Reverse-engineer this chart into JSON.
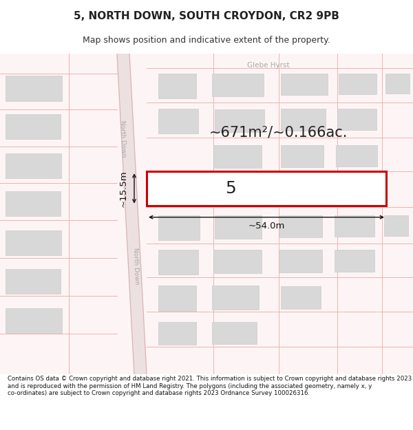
{
  "title": "5, NORTH DOWN, SOUTH CROYDON, CR2 9PB",
  "subtitle": "Map shows position and indicative extent of the property.",
  "footer": "Contains OS data © Crown copyright and database right 2021. This information is subject to Crown copyright and database rights 2023 and is reproduced with the permission of HM Land Registry. The polygons (including the associated geometry, namely x, y co-ordinates) are subject to Crown copyright and database rights 2023 Ordnance Survey 100026316.",
  "map_bg": "#fdf5f5",
  "building_fill": "#d8d8d8",
  "building_edge": "#cccccc",
  "highlight_fill": "#ffffff",
  "highlight_edge": "#cc0000",
  "grid_color": "#f0b0b0",
  "road_fill": "#ede0e0",
  "road_edge": "#d8b0b0",
  "street_label": "North Down",
  "street_label2": "Glebe Hyrst",
  "area_label": "~671m²/~0.166ac.",
  "plot_number": "5",
  "dim_width": "~54.0m",
  "dim_height": "~15.5m",
  "title_fontsize": 11,
  "subtitle_fontsize": 9,
  "footer_fontsize": 6.2
}
